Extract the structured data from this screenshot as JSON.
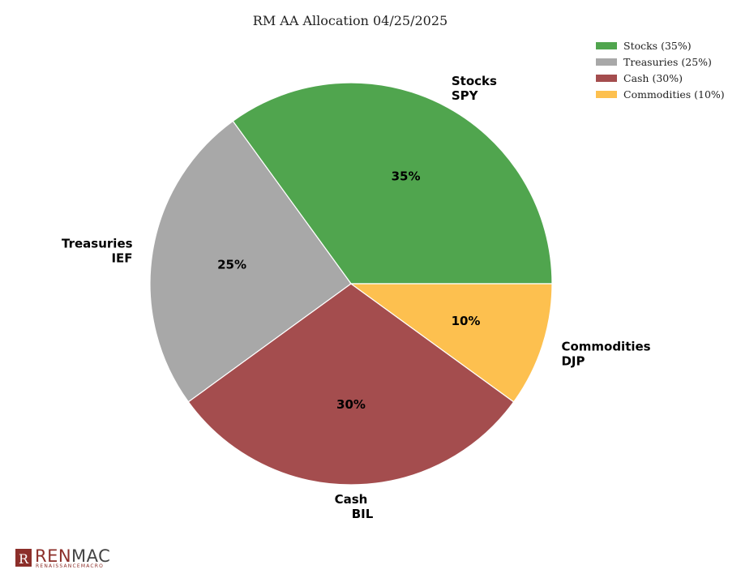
{
  "chart_data": {
    "type": "pie",
    "title": "RM AA Allocation 04/25/2025",
    "slices": [
      {
        "name": "Stocks",
        "ticker": "SPY",
        "value": 35,
        "pct_label": "35%",
        "legend": "Stocks (35%)",
        "color": "#50a54e"
      },
      {
        "name": "Treasuries",
        "ticker": "IEF",
        "value": 25,
        "pct_label": "25%",
        "legend": "Treasuries (25%)",
        "color": "#a8a8a8"
      },
      {
        "name": "Cash",
        "ticker": "BIL",
        "value": 30,
        "pct_label": "30%",
        "legend": "Cash (30%)",
        "color": "#a44d4e"
      },
      {
        "name": "Commodities",
        "ticker": "DJP",
        "value": 10,
        "pct_label": "10%",
        "legend": "Commodities (10%)",
        "color": "#fdc04f"
      }
    ],
    "start_angle_deg": 0,
    "direction": "counterclockwise",
    "legend_position": "top-right"
  },
  "logo": {
    "ren": "REN",
    "mac": "MAC",
    "sub": "RENAISSANCEMACRO"
  }
}
